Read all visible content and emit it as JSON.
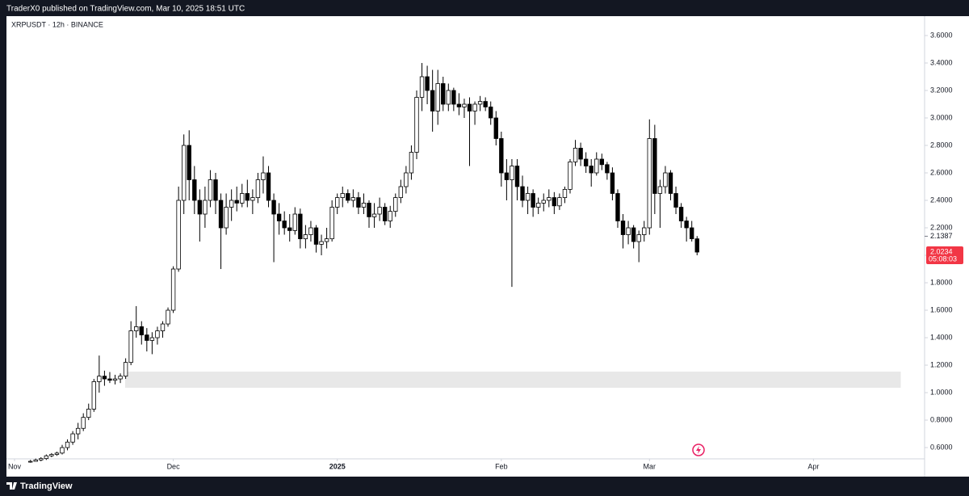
{
  "header": {
    "text": "TraderX0 published on TradingView.com, Mar 10, 2025 18:51 UTC"
  },
  "footer": {
    "brand": "TradingView"
  },
  "chart_data": {
    "type": "candlestick",
    "title": "XRPUSDT · 12h · BINANCE",
    "up_color": "#ffffff",
    "down_color": "#000000",
    "grid": false,
    "xlim": [
      -2.75,
      172
    ],
    "ylim": [
      0.518,
      3.741
    ],
    "xticks": [
      {
        "value": 0,
        "label": "Nov"
      },
      {
        "value": 30,
        "label": "Dec"
      },
      {
        "value": 61,
        "label": "2025"
      },
      {
        "value": 92,
        "label": "Feb"
      },
      {
        "value": 120,
        "label": "Mar"
      },
      {
        "value": 151,
        "label": "Apr"
      }
    ],
    "yticks": [
      {
        "value": 0.6,
        "label": "0.6000"
      },
      {
        "value": 0.8,
        "label": "0.8000"
      },
      {
        "value": 1,
        "label": "1.0000"
      },
      {
        "value": 1.2,
        "label": "1.2000"
      },
      {
        "value": 1.4,
        "label": "1.4000"
      },
      {
        "value": 1.6,
        "label": "1.6000"
      },
      {
        "value": 1.8,
        "label": "1.8000"
      },
      {
        "value": 2,
        "label": "2.0000"
      },
      {
        "value": 2.2,
        "label": "2.2000"
      },
      {
        "value": 2.4,
        "label": "2.4000"
      },
      {
        "value": 2.6,
        "label": "2.6000"
      },
      {
        "value": 2.8,
        "label": "2.8000"
      },
      {
        "value": 3,
        "label": "3.0000"
      },
      {
        "value": 3.2,
        "label": "3.2000"
      },
      {
        "value": 3.4,
        "label": "3.4000"
      },
      {
        "value": 3.6,
        "label": "3.6000"
      }
    ],
    "price_labels": [
      {
        "value": 2.1387,
        "label": "2.1387"
      },
      {
        "value": 2.0234,
        "label": "2.0234",
        "countdown": "05:08:03",
        "color": "#f23645"
      }
    ],
    "zones": [
      {
        "low": 1.035,
        "high": 1.153,
        "x": [
          20.9,
          167.5
        ],
        "color": "#e8e8e8"
      }
    ],
    "x": [
      3,
      4,
      5,
      6,
      7,
      8,
      9,
      10,
      11,
      12,
      13,
      14,
      15,
      16,
      17,
      18,
      19,
      20,
      21,
      22,
      23,
      24,
      25,
      26,
      27,
      28,
      29,
      30,
      31,
      32,
      33,
      34,
      35,
      36,
      37,
      38,
      39,
      40,
      41,
      42,
      43,
      44,
      45,
      46,
      47,
      48,
      49,
      50,
      51,
      52,
      53,
      54,
      55,
      56,
      57,
      58,
      59,
      60,
      61,
      62,
      63,
      64,
      65,
      66,
      67,
      68,
      69,
      70,
      71,
      72,
      73,
      74,
      75,
      76,
      77,
      78,
      79,
      80,
      81,
      82,
      83,
      84,
      85,
      86,
      87,
      88,
      89,
      90,
      91,
      92,
      93,
      94,
      95,
      96,
      97,
      98,
      99,
      100,
      101,
      102,
      103,
      104,
      105,
      106,
      107,
      108,
      109,
      110,
      111,
      112,
      113,
      114,
      115,
      116,
      117,
      118,
      119,
      120,
      121,
      122,
      123,
      124,
      125,
      126,
      127,
      128,
      129
    ],
    "ohlc": [
      [
        0.5,
        0.51,
        0.49,
        0.5
      ],
      [
        0.5,
        0.52,
        0.5,
        0.51
      ],
      [
        0.51,
        0.53,
        0.5,
        0.52
      ],
      [
        0.52,
        0.55,
        0.51,
        0.54
      ],
      [
        0.54,
        0.56,
        0.53,
        0.55
      ],
      [
        0.55,
        0.57,
        0.54,
        0.56
      ],
      [
        0.56,
        0.62,
        0.55,
        0.6
      ],
      [
        0.6,
        0.66,
        0.58,
        0.64
      ],
      [
        0.64,
        0.72,
        0.62,
        0.7
      ],
      [
        0.7,
        0.78,
        0.66,
        0.74
      ],
      [
        0.74,
        0.85,
        0.72,
        0.82
      ],
      [
        0.82,
        0.92,
        0.8,
        0.88
      ],
      [
        0.88,
        1.1,
        0.86,
        1.08
      ],
      [
        1.08,
        1.27,
        1.0,
        1.12
      ],
      [
        1.12,
        1.16,
        1.05,
        1.1
      ],
      [
        1.1,
        1.15,
        1.07,
        1.09
      ],
      [
        1.09,
        1.13,
        1.06,
        1.1
      ],
      [
        1.1,
        1.14,
        1.07,
        1.12
      ],
      [
        1.12,
        1.25,
        1.1,
        1.22
      ],
      [
        1.22,
        1.52,
        1.2,
        1.45
      ],
      [
        1.45,
        1.63,
        1.4,
        1.48
      ],
      [
        1.48,
        1.52,
        1.35,
        1.42
      ],
      [
        1.42,
        1.47,
        1.3,
        1.38
      ],
      [
        1.38,
        1.44,
        1.28,
        1.4
      ],
      [
        1.4,
        1.48,
        1.35,
        1.45
      ],
      [
        1.45,
        1.52,
        1.4,
        1.5
      ],
      [
        1.5,
        1.62,
        1.48,
        1.6
      ],
      [
        1.6,
        1.92,
        1.58,
        1.9
      ],
      [
        1.9,
        2.5,
        1.88,
        2.4
      ],
      [
        2.4,
        2.88,
        2.3,
        2.8
      ],
      [
        2.8,
        2.91,
        2.4,
        2.55
      ],
      [
        2.55,
        2.65,
        2.3,
        2.4
      ],
      [
        2.4,
        2.48,
        2.1,
        2.3
      ],
      [
        2.3,
        2.5,
        2.2,
        2.4
      ],
      [
        2.4,
        2.62,
        2.35,
        2.55
      ],
      [
        2.55,
        2.6,
        2.3,
        2.4
      ],
      [
        2.4,
        2.45,
        1.9,
        2.2
      ],
      [
        2.2,
        2.45,
        2.15,
        2.35
      ],
      [
        2.35,
        2.48,
        2.25,
        2.4
      ],
      [
        2.4,
        2.5,
        2.32,
        2.38
      ],
      [
        2.38,
        2.52,
        2.35,
        2.45
      ],
      [
        2.45,
        2.55,
        2.35,
        2.4
      ],
      [
        2.4,
        2.48,
        2.3,
        2.42
      ],
      [
        2.42,
        2.6,
        2.38,
        2.55
      ],
      [
        2.55,
        2.72,
        2.45,
        2.6
      ],
      [
        2.6,
        2.65,
        2.35,
        2.4
      ],
      [
        2.4,
        2.45,
        1.95,
        2.3
      ],
      [
        2.3,
        2.38,
        2.15,
        2.25
      ],
      [
        2.25,
        2.32,
        2.15,
        2.2
      ],
      [
        2.2,
        2.3,
        2.1,
        2.18
      ],
      [
        2.18,
        2.35,
        2.15,
        2.3
      ],
      [
        2.3,
        2.34,
        2.05,
        2.12
      ],
      [
        2.12,
        2.22,
        2.05,
        2.15
      ],
      [
        2.15,
        2.25,
        2.1,
        2.2
      ],
      [
        2.2,
        2.22,
        2.02,
        2.08
      ],
      [
        2.08,
        2.15,
        2.0,
        2.1
      ],
      [
        2.1,
        2.2,
        2.05,
        2.12
      ],
      [
        2.12,
        2.4,
        2.1,
        2.35
      ],
      [
        2.35,
        2.45,
        2.3,
        2.42
      ],
      [
        2.42,
        2.5,
        2.35,
        2.45
      ],
      [
        2.45,
        2.48,
        2.38,
        2.4
      ],
      [
        2.4,
        2.48,
        2.35,
        2.42
      ],
      [
        2.42,
        2.46,
        2.3,
        2.35
      ],
      [
        2.35,
        2.45,
        2.3,
        2.38
      ],
      [
        2.38,
        2.4,
        2.2,
        2.28
      ],
      [
        2.28,
        2.38,
        2.2,
        2.3
      ],
      [
        2.3,
        2.42,
        2.25,
        2.35
      ],
      [
        2.35,
        2.38,
        2.22,
        2.25
      ],
      [
        2.25,
        2.36,
        2.2,
        2.32
      ],
      [
        2.32,
        2.45,
        2.28,
        2.42
      ],
      [
        2.42,
        2.55,
        2.38,
        2.5
      ],
      [
        2.5,
        2.65,
        2.45,
        2.6
      ],
      [
        2.6,
        2.8,
        2.55,
        2.75
      ],
      [
        2.75,
        3.2,
        2.7,
        3.15
      ],
      [
        3.15,
        3.4,
        3.05,
        3.3
      ],
      [
        3.3,
        3.38,
        3.1,
        3.2
      ],
      [
        3.2,
        3.35,
        2.9,
        3.05
      ],
      [
        3.05,
        3.35,
        2.95,
        3.25
      ],
      [
        3.25,
        3.3,
        3.05,
        3.1
      ],
      [
        3.1,
        3.25,
        3.05,
        3.2
      ],
      [
        3.2,
        3.22,
        3.05,
        3.1
      ],
      [
        3.1,
        3.18,
        3.02,
        3.08
      ],
      [
        3.08,
        3.14,
        3.0,
        3.1
      ],
      [
        3.1,
        3.15,
        2.65,
        3.05
      ],
      [
        3.05,
        3.12,
        2.95,
        3.1
      ],
      [
        3.1,
        3.16,
        3.05,
        3.12
      ],
      [
        3.12,
        3.15,
        3.05,
        3.08
      ],
      [
        3.08,
        3.12,
        2.95,
        3.0
      ],
      [
        3.0,
        3.05,
        2.8,
        2.85
      ],
      [
        2.85,
        2.9,
        2.5,
        2.6
      ],
      [
        2.6,
        2.7,
        2.4,
        2.55
      ],
      [
        2.55,
        2.7,
        1.77,
        2.65
      ],
      [
        2.65,
        2.7,
        2.4,
        2.5
      ],
      [
        2.5,
        2.58,
        2.35,
        2.4
      ],
      [
        2.4,
        2.5,
        2.3,
        2.45
      ],
      [
        2.45,
        2.48,
        2.28,
        2.35
      ],
      [
        2.35,
        2.42,
        2.3,
        2.38
      ],
      [
        2.38,
        2.45,
        2.32,
        2.4
      ],
      [
        2.4,
        2.48,
        2.35,
        2.42
      ],
      [
        2.42,
        2.46,
        2.3,
        2.36
      ],
      [
        2.36,
        2.45,
        2.33,
        2.42
      ],
      [
        2.42,
        2.5,
        2.38,
        2.48
      ],
      [
        2.48,
        2.7,
        2.45,
        2.68
      ],
      [
        2.68,
        2.84,
        2.65,
        2.78
      ],
      [
        2.78,
        2.82,
        2.65,
        2.7
      ],
      [
        2.7,
        2.75,
        2.6,
        2.65
      ],
      [
        2.65,
        2.7,
        2.5,
        2.6
      ],
      [
        2.6,
        2.75,
        2.58,
        2.7
      ],
      [
        2.7,
        2.74,
        2.62,
        2.66
      ],
      [
        2.66,
        2.68,
        2.55,
        2.6
      ],
      [
        2.6,
        2.64,
        2.4,
        2.45
      ],
      [
        2.45,
        2.48,
        2.2,
        2.25
      ],
      [
        2.25,
        2.3,
        2.05,
        2.15
      ],
      [
        2.15,
        2.25,
        2.08,
        2.2
      ],
      [
        2.2,
        2.22,
        2.05,
        2.1
      ],
      [
        2.1,
        2.18,
        1.95,
        2.15
      ],
      [
        2.15,
        2.25,
        2.1,
        2.2
      ],
      [
        2.2,
        2.99,
        2.15,
        2.85
      ],
      [
        2.85,
        2.95,
        2.3,
        2.45
      ],
      [
        2.45,
        2.55,
        2.2,
        2.5
      ],
      [
        2.5,
        2.65,
        2.45,
        2.6
      ],
      [
        2.6,
        2.62,
        2.4,
        2.45
      ],
      [
        2.45,
        2.5,
        2.3,
        2.35
      ],
      [
        2.35,
        2.38,
        2.2,
        2.25
      ],
      [
        2.25,
        2.28,
        2.1,
        2.2
      ],
      [
        2.2,
        2.25,
        2.1,
        2.12
      ],
      [
        2.12,
        2.14,
        2.0,
        2.0234
      ]
    ]
  }
}
